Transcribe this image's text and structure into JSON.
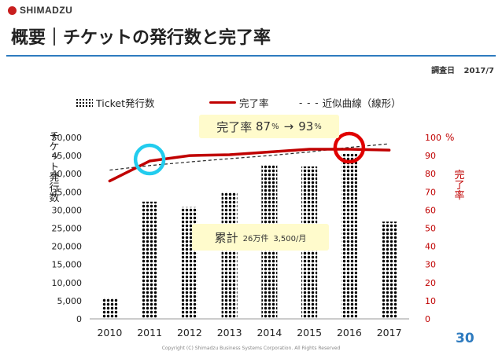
{
  "header": {
    "logo_text": "SHIMADZU",
    "title": "概要｜チケットの発行数と完了率",
    "survey_label": "調査日",
    "survey_date": "2017/7"
  },
  "legend": {
    "bars_label": "Ticket発行数",
    "line_label": "完了率",
    "trend_dash": "- - -",
    "trend_label": "近似曲線（線形）"
  },
  "callouts": {
    "rate_label": "完了率",
    "rate_from": "87",
    "rate_arrow": "→",
    "rate_to": "93",
    "pct_unit": "%",
    "total_label": "累計",
    "total_value": "26万件",
    "monthly_value": "3,500/月"
  },
  "footer": {
    "page_number": "30",
    "copyright": "Copyright (C) Shimadzu Business Systems Corporation. All Rights Reserved"
  },
  "colors": {
    "rate_line": "#c00000",
    "bars": "#000000",
    "highlight_cyan": "#22ccee",
    "highlight_red": "#e00000",
    "accent_blue": "#2e7bbf",
    "callout_bg": "#fffbcc"
  },
  "chart_data": {
    "type": "bar",
    "categories": [
      "2010",
      "2011",
      "2012",
      "2013",
      "2014",
      "2015",
      "2016",
      "2017"
    ],
    "series": [
      {
        "name": "Ticket発行数",
        "type": "bar",
        "axis": "left",
        "values": [
          5800,
          32300,
          30800,
          35000,
          42500,
          42000,
          45500,
          26800
        ]
      },
      {
        "name": "完了率",
        "type": "line",
        "axis": "right",
        "values": [
          76,
          87,
          90,
          90.5,
          92,
          93.5,
          93.5,
          93
        ]
      },
      {
        "name": "近似曲線（線形）",
        "type": "trendline",
        "axis": "right",
        "values": [
          82,
          84.5,
          86.5,
          88.3,
          90,
          92,
          94.5,
          96.5
        ]
      }
    ],
    "ylabel": "チケット発行数",
    "y2label": "完了率",
    "y2_unit": "%",
    "ylim": [
      0,
      50000
    ],
    "y2lim": [
      0,
      100
    ],
    "yticks": [
      "0",
      "5,000",
      "10,000",
      "15,000",
      "20,000",
      "25,000",
      "30,000",
      "35,000",
      "40,000",
      "45,000",
      "50,000"
    ],
    "y2ticks": [
      "0",
      "10",
      "20",
      "30",
      "40",
      "50",
      "60",
      "70",
      "80",
      "90",
      "100"
    ],
    "highlights": [
      {
        "category": "2011",
        "series": "完了率",
        "color": "cyan"
      },
      {
        "category": "2016",
        "series": "完了率",
        "color": "red"
      }
    ],
    "grid": false,
    "legend_position": "top"
  }
}
